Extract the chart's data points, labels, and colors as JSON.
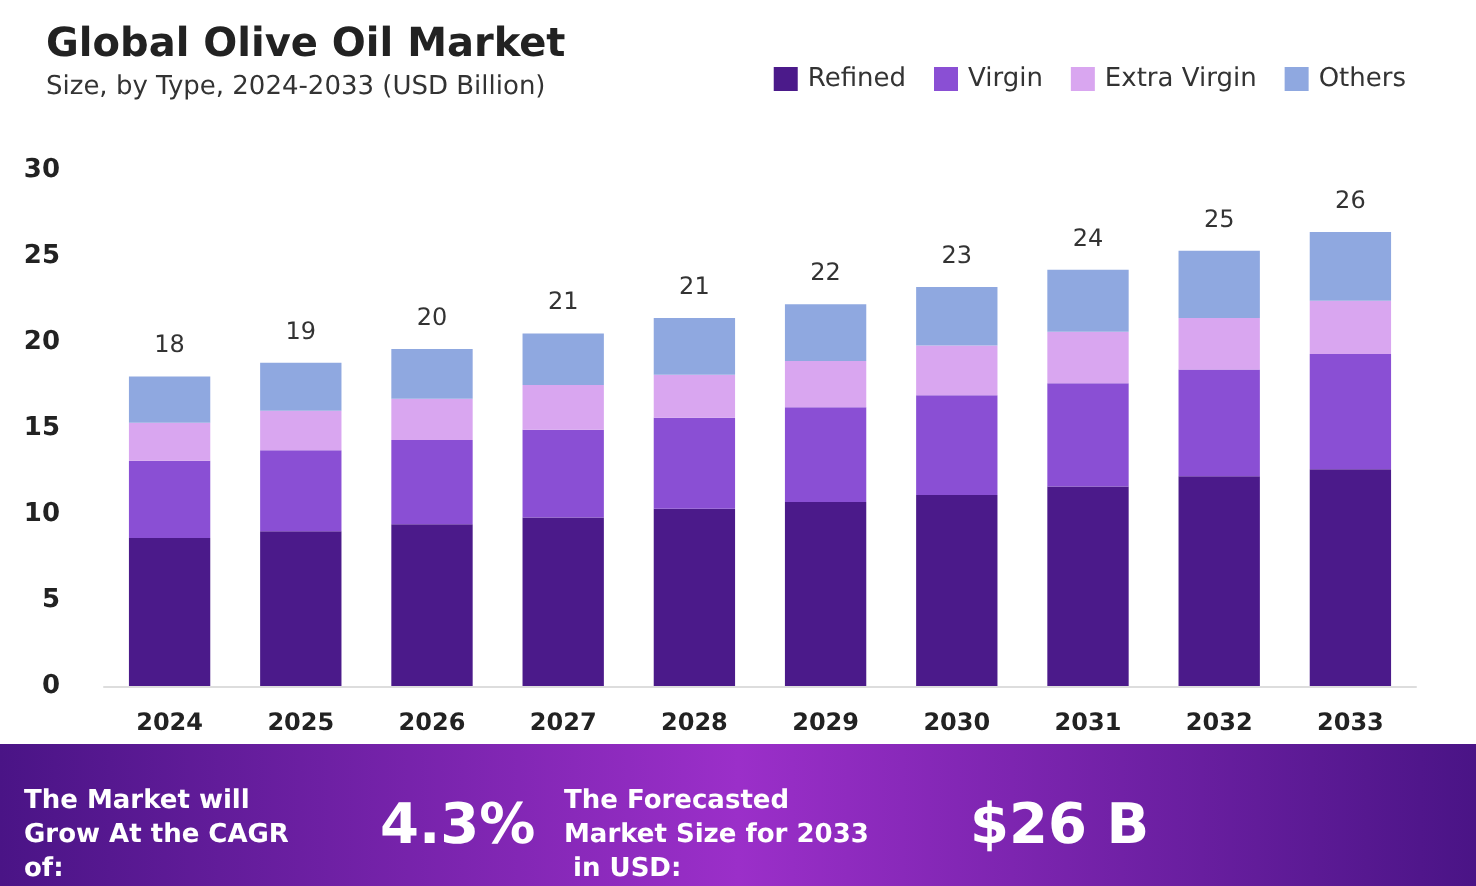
{
  "chart_data": {
    "type": "bar",
    "title": "Global Olive Oil Market",
    "subtitle": "Size, by Type, 2024-2033 (USD Billion)",
    "categories": [
      "2024",
      "2025",
      "2026",
      "2027",
      "2028",
      "2029",
      "2030",
      "2031",
      "2032",
      "2033"
    ],
    "stacked": true,
    "series": [
      {
        "name": "Refined",
        "color": "#4b1a8a",
        "values": [
          8.6,
          9.0,
          9.4,
          9.8,
          10.3,
          10.7,
          11.1,
          11.6,
          12.2,
          12.6
        ]
      },
      {
        "name": "Virgin",
        "color": "#8a4fd4",
        "values": [
          4.5,
          4.7,
          4.9,
          5.1,
          5.3,
          5.5,
          5.8,
          6.0,
          6.2,
          6.7
        ]
      },
      {
        "name": "Extra Virgin",
        "color": "#d9a6f0",
        "values": [
          2.2,
          2.3,
          2.4,
          2.6,
          2.5,
          2.7,
          2.9,
          3.0,
          3.0,
          3.1
        ]
      },
      {
        "name": "Others",
        "color": "#8fa8e0",
        "values": [
          2.7,
          2.8,
          2.9,
          3.0,
          3.3,
          3.3,
          3.4,
          3.6,
          3.9,
          4.0
        ]
      }
    ],
    "totals": [
      "18",
      "19",
      "20",
      "21",
      "21",
      "22",
      "23",
      "24",
      "25",
      "26"
    ],
    "ylim": [
      0,
      30
    ],
    "yticks": [
      0,
      5,
      10,
      15,
      20,
      25,
      30
    ],
    "grid": false,
    "legend": "top right",
    "annotations": [
      "The Market will Grow At the CAGR of:",
      "4.3%",
      "The Forecasted Market Size for 2033 in USD:",
      "$26 B"
    ]
  }
}
